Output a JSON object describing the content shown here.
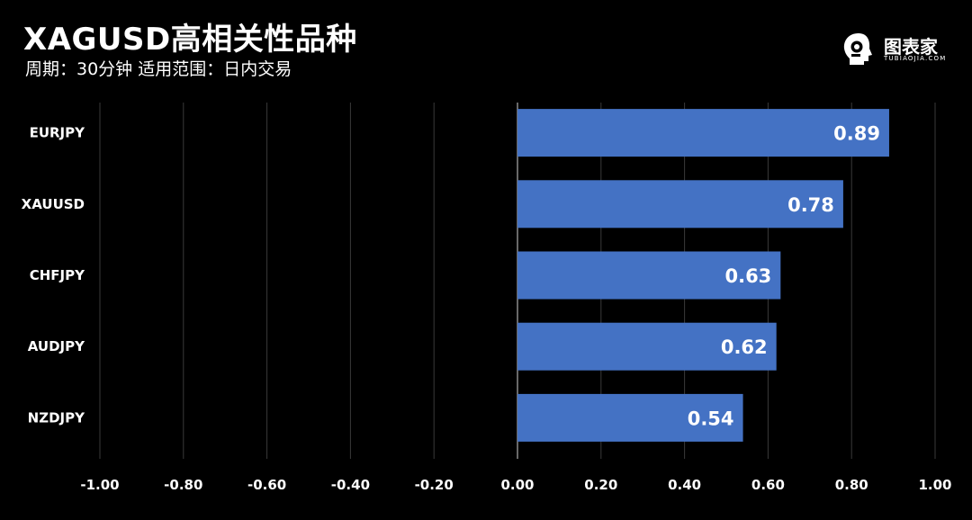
{
  "header": {
    "title": "XAGUSD高相关性品种",
    "subtitle": "周期：30分钟  适用范围：日内交易"
  },
  "brand": {
    "name": "图表家",
    "tagline": "TUBIAOJIA.COM",
    "icon": "robot-head-logo-icon"
  },
  "colors": {
    "background": "#000000",
    "bar": "#4472C4",
    "grid": "#3a3a3a",
    "text": "#ffffff"
  },
  "chart_data": {
    "type": "bar",
    "orientation": "horizontal",
    "categories": [
      "EURJPY",
      "XAUUSD",
      "CHFJPY",
      "AUDJPY",
      "NZDJPY"
    ],
    "values": [
      0.89,
      0.78,
      0.63,
      0.62,
      0.54
    ],
    "value_labels": [
      "0.89",
      "0.78",
      "0.63",
      "0.62",
      "0.54"
    ],
    "xlim": [
      -1.0,
      1.0
    ],
    "x_ticks": [
      -1.0,
      -0.8,
      -0.6,
      -0.4,
      -0.2,
      0.0,
      0.2,
      0.4,
      0.6,
      0.8,
      1.0
    ],
    "x_tick_labels": [
      "-1.00",
      "-0.80",
      "-0.60",
      "-0.40",
      "-0.20",
      "0.00",
      "0.20",
      "0.40",
      "0.60",
      "0.80",
      "1.00"
    ],
    "grid": true,
    "legend": "none"
  }
}
